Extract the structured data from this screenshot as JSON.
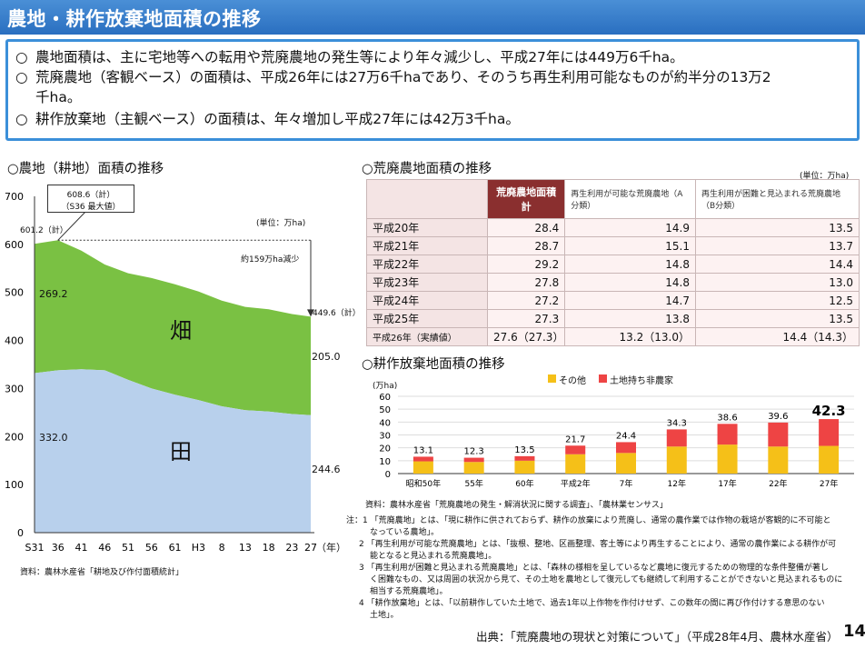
{
  "title": "農地・耕作放棄地面積の推移",
  "summary": {
    "mark": "○",
    "lines": [
      "農地面積は、主に宅地等への転用や荒廃農地の発生等により年々減少し、平成27年には449万6千ha。",
      "荒廃農地（客観ベース）の面積は、平成26年には27万6千haであり、そのうち再生利用可能なものが約半分の13万2",
      "千ha。",
      "耕作放棄地（主観ベース）の面積は、年々増加し平成27年には42万3千ha。"
    ]
  },
  "chart_left": {
    "section_title": "○農地（耕地）面積の推移",
    "unit": "(単位：万ha)",
    "source": "資料：農林水産省「耕地及び作付面積統計」",
    "callout_top": "608.6（計）",
    "callout_bottom": "（S36 最大値）",
    "start_total_label": "601.2（計）",
    "decrease_label": "約159万ha減少",
    "end_total_label": "449.6（計）",
    "hata_start": "269.2",
    "hata_end": "205.0",
    "ta_start": "332.0",
    "ta_end": "244.6",
    "label_hata": "畑",
    "label_ta": "田",
    "x_unit": "（年）"
  },
  "chart_right_title": "○荒廃農地面積の推移",
  "table": {
    "unit": "(単位：万ha)",
    "headers": [
      "荒廃農地面積計",
      "再生利用が可能な荒廃農地（A分類）",
      "再生利用が困難と見込まれる荒廃農地（B分類）"
    ],
    "rows": [
      {
        "year": "平成20年",
        "total": "28.4",
        "a": "14.9",
        "b": "13.5"
      },
      {
        "year": "平成21年",
        "total": "28.7",
        "a": "15.1",
        "b": "13.7"
      },
      {
        "year": "平成22年",
        "total": "29.2",
        "a": "14.8",
        "b": "14.4"
      },
      {
        "year": "平成23年",
        "total": "27.8",
        "a": "14.8",
        "b": "13.0"
      },
      {
        "year": "平成24年",
        "total": "27.2",
        "a": "14.7",
        "b": "12.5"
      },
      {
        "year": "平成25年",
        "total": "27.3",
        "a": "13.8",
        "b": "13.5"
      },
      {
        "year": "平成26年（実績値）",
        "total": "27.6（27.3）",
        "a": "13.2（13.0）",
        "b": "14.4（14.3）"
      }
    ]
  },
  "chart_bottom": {
    "section_title": "○耕作放棄地面積の推移",
    "unit": "(万ha)",
    "legend_other": "その他",
    "legend_nonfarm": "土地持ち非農家",
    "source": "資料：農林水産省「荒廃農地の発生・解消状況に関する調査」、「農林業センサス」"
  },
  "notes": [
    "注：1 「荒廃農地」とは、「現に耕作に供されておらず、耕作の放棄により荒廃し、通常の農作業では作物の栽培が客観的に不可能と",
    "なっている農地」。",
    "2 「再生利用が可能な荒廃農地」とは、「抜根、整地、区画整理、客土等により再生することにより、通常の農作業による耕作が可",
    "能となると見込まれる荒廃農地」。",
    "3 「再生利用が困難と見込まれる荒廃農地」とは、「森林の様相を呈しているなど農地に復元するための物理的な条件整備が著し",
    "く困難なもの、又は周囲の状況から見て、その土地を農地として復元しても継続して利用することができないと見込まれるものに",
    "相当する荒廃農地」。",
    "4 「耕作放棄地」とは、「以前耕作していた土地で、過去1年以上作物を作付けせず、この数年の間に再び作付けする意思のない",
    "土地」。"
  ],
  "footer": {
    "source": "出典：「荒廃農地の現状と対策について」（平成28年4月、農林水産省）",
    "page": "14"
  },
  "colors": {
    "hata": "#7ac143",
    "ta": "#b8d0ec",
    "other": "#f5c018",
    "nonfarm": "#ee4444",
    "accent": "#3b8fd9"
  },
  "chart_data": [
    {
      "type": "area",
      "title": "農地（耕地）面積の推移",
      "ylabel": "万ha",
      "ylim": [
        0,
        700
      ],
      "yticks": [
        "0",
        "100",
        "200",
        "300",
        "400",
        "500",
        "600",
        "700"
      ],
      "x_labels": [
        "S31",
        "36",
        "41",
        "46",
        "51",
        "56",
        "61",
        "H3",
        "8",
        "13",
        "18",
        "23",
        "27"
      ],
      "x_years": [
        31,
        36,
        41,
        46,
        51,
        56,
        61,
        66,
        71,
        76,
        81,
        86,
        90
      ],
      "series": [
        {
          "name": "田",
          "values": [
            332.0,
            338,
            340,
            338,
            318,
            300,
            287,
            276,
            263,
            255,
            252,
            247,
            244.6
          ]
        },
        {
          "name": "畑",
          "values": [
            269.2,
            270.6,
            247,
            220,
            222,
            230,
            230,
            226,
            220,
            215,
            213,
            208,
            205.0
          ]
        },
        {
          "name": "計",
          "values": [
            601.2,
            608.6,
            587,
            558,
            540,
            530,
            517,
            502,
            483,
            470,
            465,
            455,
            449.6
          ]
        }
      ]
    },
    {
      "type": "bar",
      "title": "耕作放棄地面積の推移",
      "ylabel": "万ha",
      "ylim": [
        0,
        60
      ],
      "yticks": [
        "0",
        "10",
        "20",
        "30",
        "40",
        "50",
        "60"
      ],
      "categories": [
        "昭和50年",
        "55年",
        "60年",
        "平成2年",
        "7年",
        "12年",
        "17年",
        "22年",
        "27年"
      ],
      "totals": [
        "13.1",
        "12.3",
        "13.5",
        "21.7",
        "24.4",
        "34.3",
        "38.6",
        "39.6",
        "42.3"
      ],
      "series": [
        {
          "name": "その他",
          "values": [
            9.5,
            9.0,
            10.0,
            15.0,
            16.0,
            21.0,
            22.5,
            21.0,
            21.5
          ]
        },
        {
          "name": "土地持ち非農家",
          "values": [
            3.6,
            3.3,
            3.5,
            6.7,
            8.4,
            13.3,
            16.1,
            18.6,
            20.8
          ]
        }
      ]
    }
  ]
}
